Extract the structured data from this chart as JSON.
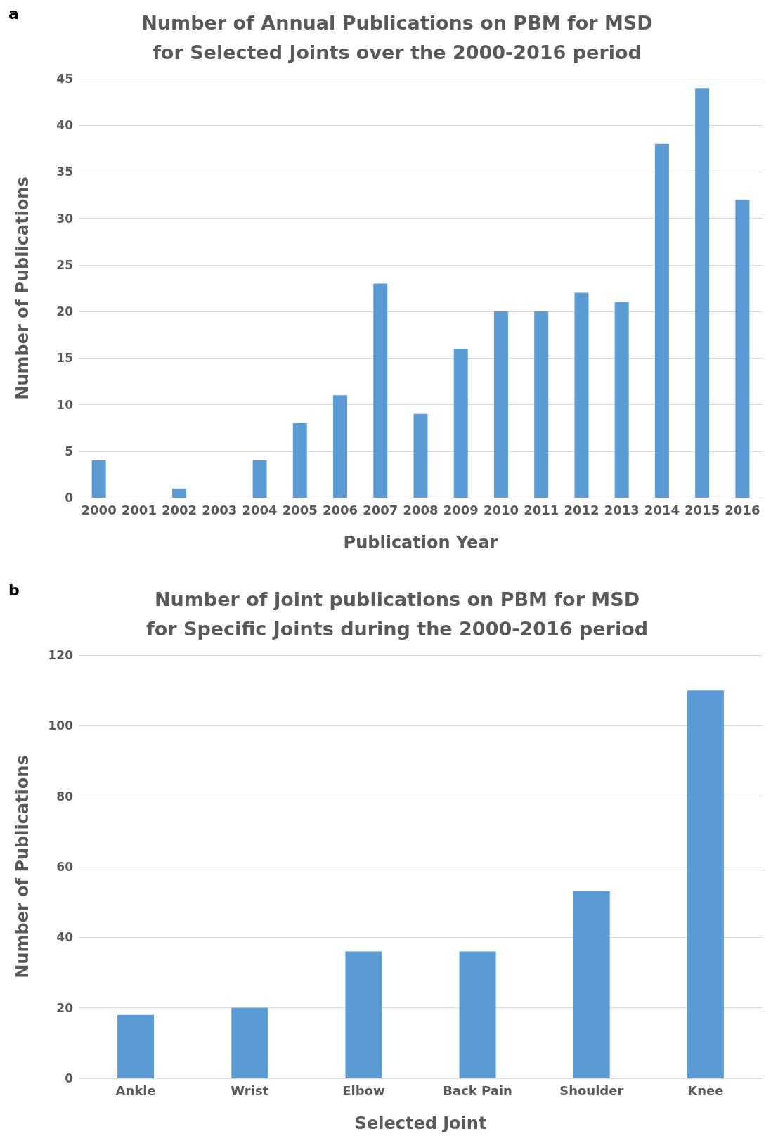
{
  "chart_data": [
    {
      "type": "bar",
      "title": "Number of Annual Publications on PBM for MSD\nfor Selected Joints over the 2000-2016 period",
      "xlabel": "Publication Year",
      "ylabel": "Number of Publications",
      "annotations": [
        "a"
      ],
      "categories": [
        "2000",
        "2001",
        "2002",
        "2003",
        "2004",
        "2005",
        "2006",
        "2007",
        "2008",
        "2009",
        "2010",
        "2011",
        "2012",
        "2013",
        "2014",
        "2015",
        "2016"
      ],
      "values": [
        4,
        0,
        1,
        0,
        4,
        8,
        11,
        23,
        9,
        16,
        20,
        20,
        22,
        21,
        38,
        44,
        32
      ],
      "color": "#5b9bd5",
      "ylim": [
        0,
        45
      ],
      "yticks": [
        0,
        5,
        10,
        15,
        20,
        25,
        30,
        35,
        40,
        45
      ],
      "grid": "y"
    },
    {
      "type": "bar",
      "title": "Number of joint publications on PBM for MSD\nfor Specific Joints during the 2000-2016 period",
      "xlabel": "Selected Joint",
      "ylabel": "Number of Publications",
      "annotations": [
        "b"
      ],
      "categories": [
        "Ankle",
        "Wrist",
        "Elbow",
        "Back Pain",
        "Shoulder",
        "Knee"
      ],
      "values": [
        18,
        20,
        36,
        36,
        53,
        110
      ],
      "color": "#5b9bd5",
      "ylim": [
        0,
        120
      ],
      "yticks": [
        0,
        20,
        40,
        60,
        80,
        100,
        120
      ],
      "grid": "y"
    }
  ]
}
